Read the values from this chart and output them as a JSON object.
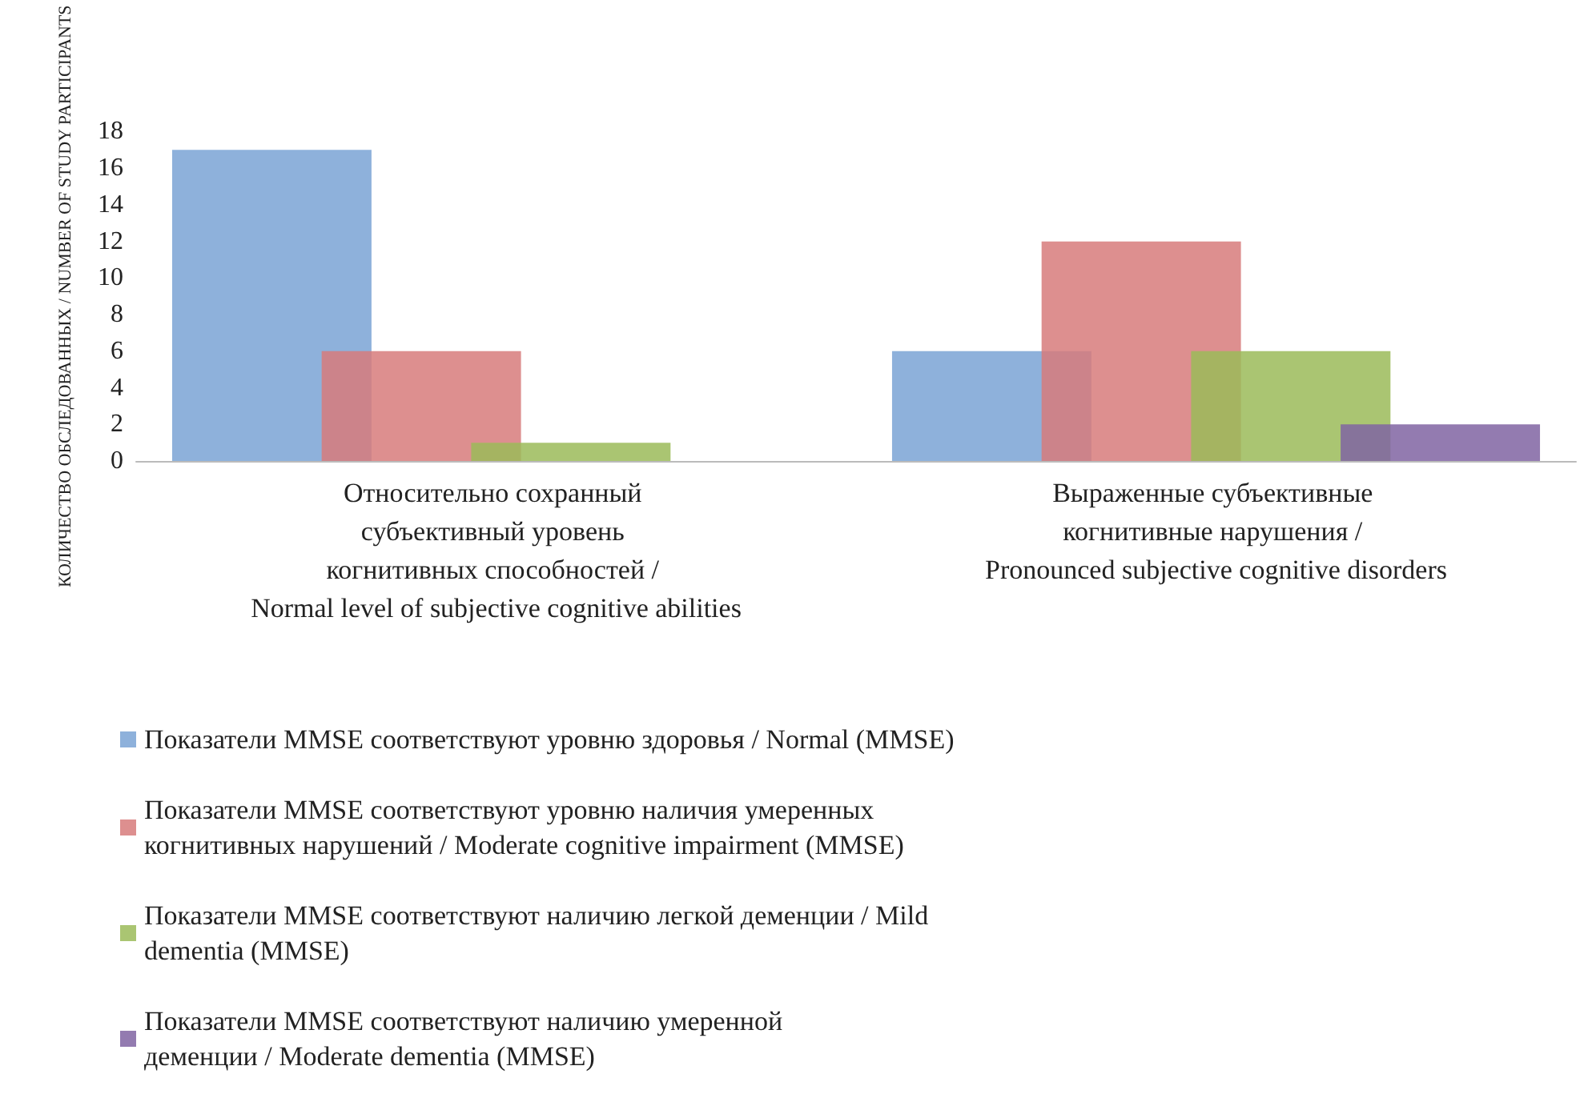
{
  "chart_data": {
    "type": "bar",
    "ylabel": "КОЛИЧЕСТВО ОБСЛЕДОВАННЫХ / NUMBER OF STUDY PARTICIPANTS",
    "categories": [
      "Относительно сохранный субъективный уровень когнитивных способностей / Normal level of subjective cognitive abilities",
      "Выраженные субъективные когнитивные нарушения / Pronounced subjective cognitive disorders"
    ],
    "series": [
      {
        "name": "Показатели MMSE соответствуют уровню здоровья / Normal (MMSE)",
        "color": "#7aa3d5",
        "values": [
          17,
          6
        ]
      },
      {
        "name": "Показатели MMSE соответствуют уровню наличия умеренных когнитивных нарушений / Moderate cognitive impairment (MMSE)",
        "color": "#d77b7b",
        "values": [
          6,
          12
        ]
      },
      {
        "name": "Показатели MMSE соответствуют наличию легкой деменции / Mild dementia (MMSE)",
        "color": "#9bbb59",
        "values": [
          1,
          6
        ]
      },
      {
        "name": "Показатели MMSE соответствуют наличию умеренной деменции / Moderate dementia (MMSE)",
        "color": "#8064a2",
        "values": [
          0,
          2
        ]
      }
    ],
    "ylim": [
      0,
      18
    ],
    "yticks": [
      0,
      2,
      4,
      6,
      8,
      10,
      12,
      14,
      16,
      18
    ],
    "grid": false,
    "legend": "bottom"
  }
}
